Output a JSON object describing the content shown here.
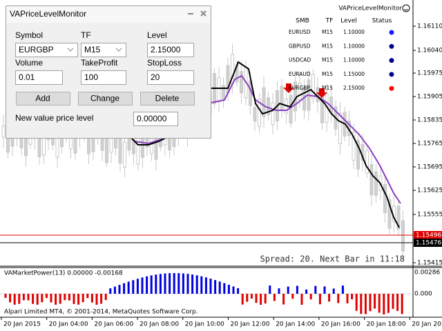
{
  "panel": {
    "title": "VAPriceLevelMonitor",
    "fields": [
      {
        "label": "Symbol",
        "value": "EURGBP"
      },
      {
        "label": "TF",
        "value": "M15"
      },
      {
        "label": "Level",
        "value": "2.15000"
      },
      {
        "label": "Volume",
        "value": "0.01"
      },
      {
        "label": "TakeProfit",
        "value": "100"
      },
      {
        "label": "StopLoss",
        "value": "20"
      }
    ],
    "buttons": [
      "Add",
      "Change",
      "Delete"
    ],
    "new_level": {
      "label": "New value price level",
      "value": "0.00000"
    }
  },
  "monitor": {
    "title": "VAPriceLevelMonitor",
    "headers": [
      "SMB",
      "TF",
      "Level",
      "Status"
    ],
    "rows": [
      {
        "symbol": "EURUSD",
        "tf": "M15",
        "level": "1.10000",
        "status_color": "#1a1aff"
      },
      {
        "symbol": "GBPUSD",
        "tf": "M15",
        "level": "1.10000",
        "status_color": "#00008b"
      },
      {
        "symbol": "USDCAD",
        "tf": "M15",
        "level": "1.10000",
        "status_color": "#00008b"
      },
      {
        "symbol": "EURAUD",
        "tf": "M15",
        "level": "1.15000",
        "status_color": "#00008b"
      },
      {
        "symbol": "EURGBP",
        "tf": "M15",
        "level": "2.15000",
        "status_color": "#ff0000"
      }
    ]
  },
  "price_axis": {
    "labels": [
      "1.16110",
      "1.16040",
      "1.15975",
      "1.15905",
      "1.15835",
      "1.15765",
      "1.15695",
      "1.15625",
      "1.15555",
      "1.15415"
    ],
    "bid_label": "1.15496",
    "ask_label": "1.15476"
  },
  "spread_text": "Spread: 20. Next Bar in 11:18",
  "indicator": {
    "title": "VAMarketPower(13) 0.00000 -0.00168",
    "axis_labels": [
      "0.00286",
      "0.000"
    ]
  },
  "copyright": "Alpari Limited MT4, © 2001-2014, MetaQuotes Software Corp.",
  "time_axis": [
    "20 Jan 2015",
    "20 Jan 04:00",
    "20 Jan 06:00",
    "20 Jan 08:00",
    "20 Jan 10:00",
    "20 Jan 12:00",
    "20 Jan 14:00",
    "20 Jan 16:00",
    "20 Jan 18:00",
    "20 Jan 20:00"
  ]
}
